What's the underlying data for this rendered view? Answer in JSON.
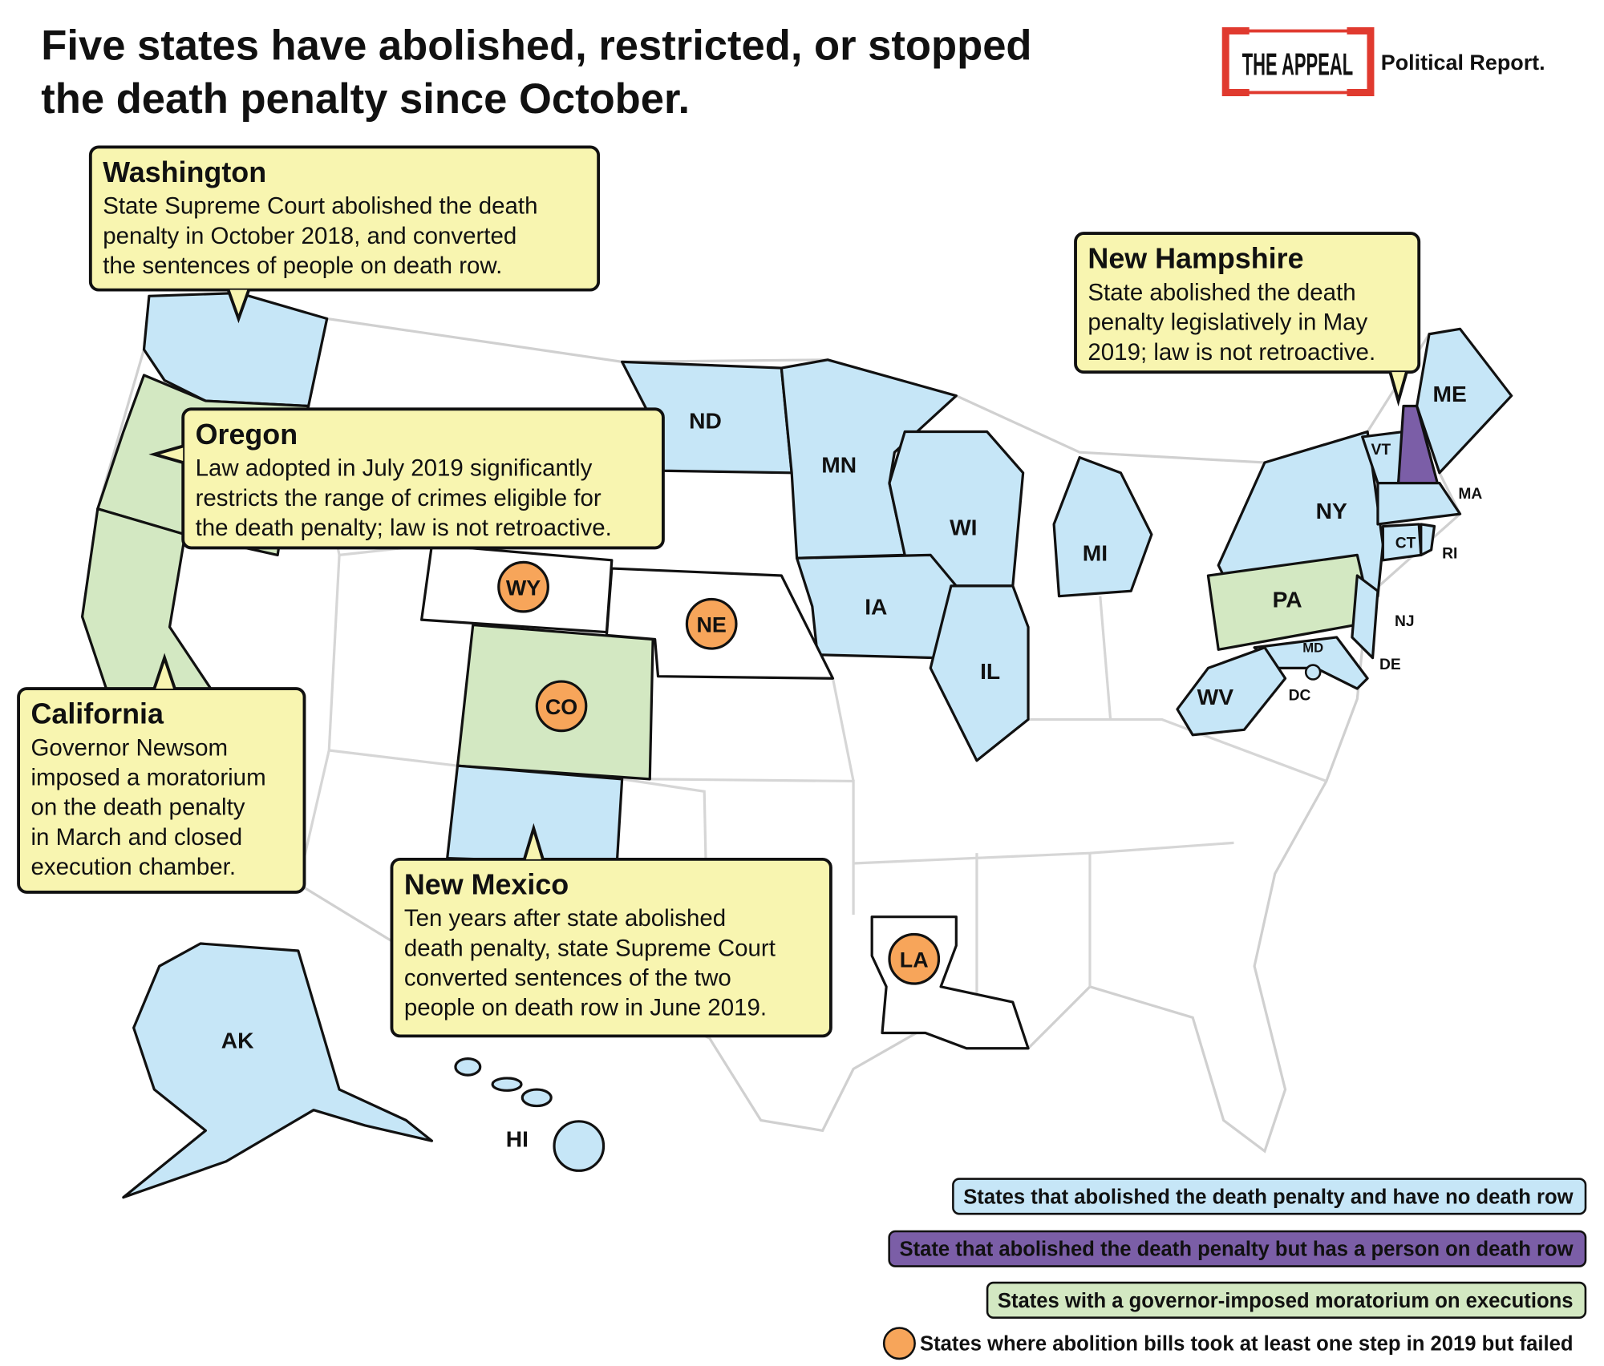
{
  "header": {
    "title_lines": [
      "Five states have abolished, restricted, or stopped",
      "the death penalty since October."
    ],
    "logo": "THE APPEAL",
    "logo_subtitle": "Political Report."
  },
  "callouts": [
    {
      "title": "Washington",
      "lines": [
        "State Supreme Court abolished the death",
        "penalty in October 2018, and converted",
        "the sentences of people on death row."
      ]
    },
    {
      "title": "New Hampshire",
      "lines": [
        "State abolished the death",
        "penalty legislatively in May",
        "2019; law is not retroactive."
      ]
    },
    {
      "title": "Oregon",
      "lines": [
        "Law adopted in July 2019 significantly",
        "restricts the range of crimes eligible for",
        "the death penalty; law is not retroactive."
      ]
    },
    {
      "title": "California",
      "lines": [
        "Governor Newsom",
        "imposed a moratorium",
        "on the death penalty",
        "in March and closed",
        "execution chamber."
      ]
    },
    {
      "title": "New Mexico",
      "lines": [
        "Ten years after state abolished",
        "death penalty, state Supreme Court",
        "converted sentences of the two",
        "people on death row in June 2019."
      ]
    }
  ],
  "state_labels": [
    "ND",
    "MN",
    "WI",
    "MI",
    "IA",
    "IL",
    "NY",
    "ME",
    "VT",
    "MA",
    "CT",
    "RI",
    "PA",
    "NJ",
    "DE",
    "MD",
    "DC",
    "WV",
    "AK",
    "HI"
  ],
  "failed_bill_states": [
    "WY",
    "NE",
    "CO",
    "LA"
  ],
  "legend": [
    {
      "label": "States that abolished the death penalty and have no death row",
      "color": "#c6e6f7"
    },
    {
      "label": "State that abolished the death penalty but has a person on death row",
      "color": "#7b5ea7"
    },
    {
      "label": "States with a governor-imposed moratorium on executions",
      "color": "#d3e8c2"
    },
    {
      "label": "States where abolition bills took at least one step in 2019 but failed",
      "color": "#f7a55a"
    }
  ]
}
